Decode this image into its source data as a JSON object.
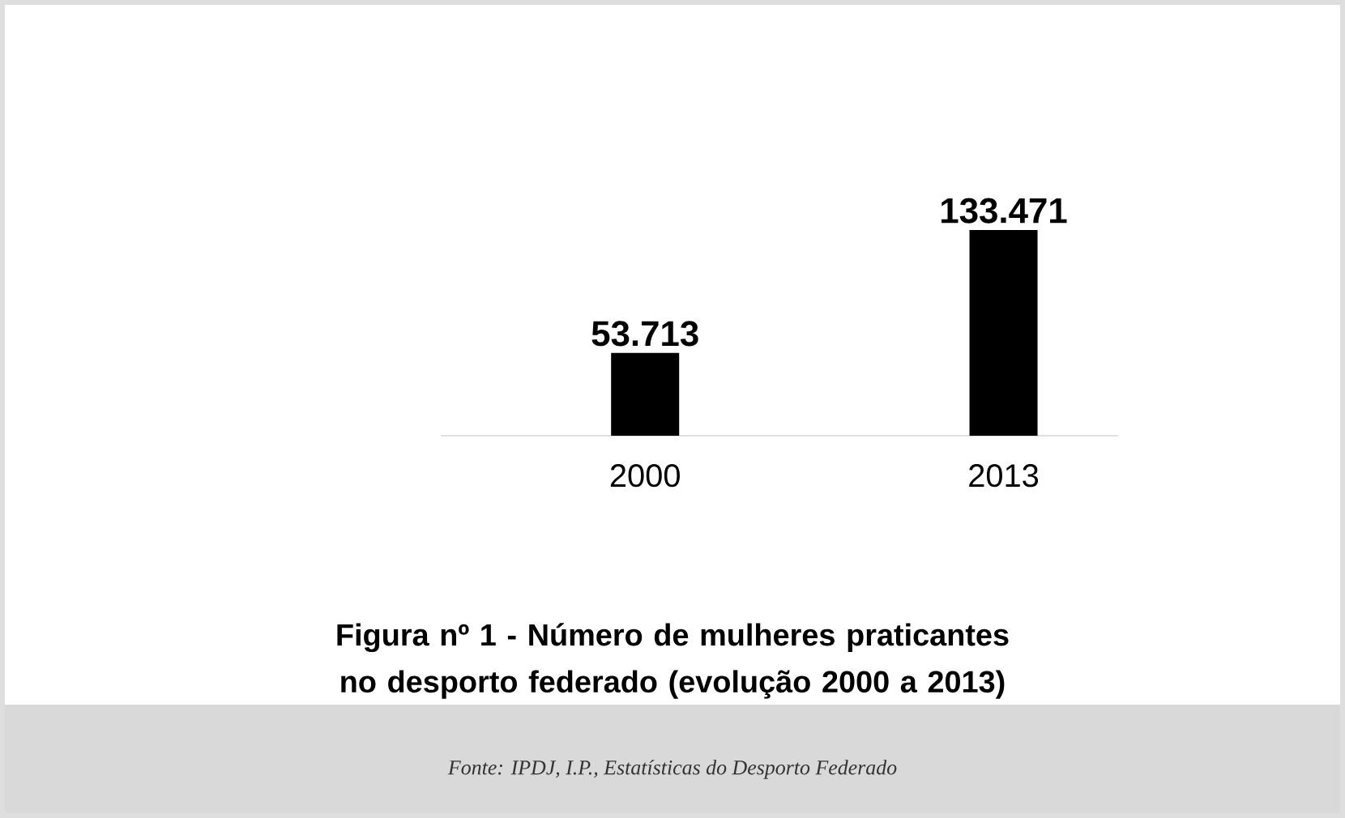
{
  "chart_data": {
    "type": "bar",
    "title": "Figura nº 1 - Número de mulheres praticantes no desporto federado (evolução 2000 a 2013)",
    "categories": [
      "2000",
      "2013"
    ],
    "values": [
      53713,
      133471
    ],
    "value_labels": [
      "53.713",
      "133.471"
    ],
    "color": "#000000",
    "annotations": [
      "Fonte: IPDJ, I.P., Estatísticas do Desporto Federado"
    ]
  }
}
